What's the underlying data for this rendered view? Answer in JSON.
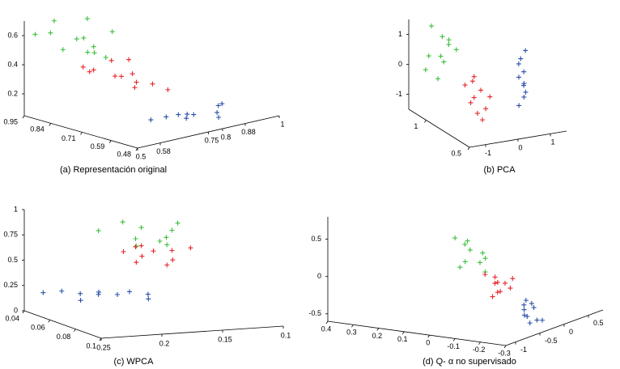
{
  "chart_data": [
    {
      "type": "scatter3d",
      "title": "(a) Representación original",
      "xlim": [
        0.5,
        1
      ],
      "ylim": [
        0.48,
        0.95
      ],
      "zlim": [
        0.05,
        0.7
      ],
      "xticks": [
        0.5,
        0.58,
        0.75,
        0.8,
        0.88,
        1
      ],
      "yticks": [
        0.95,
        0.84,
        0.71,
        0.59,
        0.48
      ],
      "zticks": [
        0.2,
        0.4,
        0.6
      ],
      "series": [
        {
          "color": "#2a4fa8",
          "x": [
            0.72,
            0.76,
            0.8,
            0.84,
            0.87,
            0.78,
            0.82,
            0.74,
            0.9,
            0.7
          ],
          "y": [
            0.62,
            0.58,
            0.6,
            0.55,
            0.58,
            0.64,
            0.52,
            0.56,
            0.6,
            0.66
          ],
          "z": [
            0.1,
            0.12,
            0.09,
            0.11,
            0.13,
            0.08,
            0.1,
            0.11,
            0.12,
            0.07
          ]
        },
        {
          "color": "#3cbf3c",
          "x": [
            0.55,
            0.6,
            0.58,
            0.65,
            0.7,
            0.62,
            0.56,
            0.68,
            0.63,
            0.6,
            0.66,
            0.53
          ],
          "y": [
            0.9,
            0.85,
            0.92,
            0.88,
            0.82,
            0.8,
            0.86,
            0.9,
            0.84,
            0.78,
            0.8,
            0.94
          ],
          "z": [
            0.62,
            0.58,
            0.68,
            0.55,
            0.6,
            0.5,
            0.52,
            0.66,
            0.48,
            0.56,
            0.45,
            0.6
          ]
        },
        {
          "color": "#e8262a",
          "x": [
            0.6,
            0.65,
            0.7,
            0.68,
            0.74,
            0.63,
            0.72,
            0.66,
            0.69,
            0.62,
            0.76,
            0.58
          ],
          "y": [
            0.78,
            0.75,
            0.72,
            0.8,
            0.7,
            0.7,
            0.76,
            0.68,
            0.74,
            0.82,
            0.66,
            0.8
          ],
          "z": [
            0.4,
            0.35,
            0.3,
            0.42,
            0.28,
            0.38,
            0.33,
            0.3,
            0.45,
            0.36,
            0.25,
            0.42
          ]
        }
      ]
    },
    {
      "type": "scatter3d",
      "title": "(b) PCA",
      "xlim": [
        -1.5,
        1.5
      ],
      "ylim": [
        0.5,
        1.2
      ],
      "zlim": [
        -1.5,
        1.5
      ],
      "xticks": [
        -1,
        0,
        1
      ],
      "yticks": [
        0.5,
        1
      ],
      "zticks": [
        -1,
        0,
        1
      ],
      "series": [
        {
          "color": "#2a4fa8",
          "x": [
            1.1,
            1.2,
            1.3,
            1.15,
            1.25,
            1.2,
            1.1,
            1.3,
            1.2,
            1.15
          ],
          "y": [
            0.9,
            0.88,
            0.92,
            0.86,
            0.9,
            0.94,
            0.88,
            0.9,
            0.86,
            0.92
          ],
          "z": [
            -1.3,
            -1,
            -0.7,
            -0.5,
            -0.2,
            0,
            0.3,
            0.5,
            -0.8,
            -0.4
          ]
        },
        {
          "color": "#3cbf3c",
          "x": [
            -1.2,
            -1,
            -0.8,
            -1.1,
            -0.9,
            -1.3,
            -0.7,
            -1,
            -0.85,
            -1.15
          ],
          "y": [
            1.05,
            1,
            1,
            0.98,
            1.02,
            1.08,
            0.95,
            1.05,
            0.98,
            1.1
          ],
          "z": [
            1.5,
            1.2,
            0.9,
            0.6,
            0.3,
            0,
            0.8,
            -0.3,
            1.1,
            0.4
          ]
        },
        {
          "color": "#e8262a",
          "x": [
            -0.6,
            -0.4,
            -0.5,
            -0.3,
            -0.7,
            -0.45,
            -0.2,
            -0.55,
            -0.35,
            -0.5
          ],
          "y": [
            0.8,
            0.78,
            0.82,
            0.76,
            0.85,
            0.8,
            0.75,
            0.84,
            0.78,
            0.82
          ],
          "z": [
            0,
            -0.3,
            -0.6,
            -0.9,
            -0.2,
            -1.1,
            -0.5,
            -0.8,
            -1.3,
            0.1
          ]
        }
      ]
    },
    {
      "type": "scatter3d",
      "title": "(c) WPCA",
      "xlim": [
        0.25,
        0.1
      ],
      "ylim": [
        0.04,
        0.1
      ],
      "zlim": [
        0,
        1
      ],
      "xticks": [
        0.25,
        0.2,
        0.15,
        0.1
      ],
      "yticks": [
        0.04,
        0.06,
        0.08,
        0.1
      ],
      "zticks": [
        0,
        0.25,
        0.5,
        0.75,
        1
      ],
      "series": [
        {
          "color": "#2a4fa8",
          "x": [
            0.245,
            0.235,
            0.225,
            0.215,
            0.205,
            0.195,
            0.185,
            0.23,
            0.21,
            0.19
          ],
          "y": [
            0.05,
            0.055,
            0.06,
            0.065,
            0.07,
            0.07,
            0.075,
            0.065,
            0.06,
            0.08
          ],
          "z": [
            0.22,
            0.25,
            0.24,
            0.27,
            0.26,
            0.28,
            0.27,
            0.2,
            0.22,
            0.25
          ]
        },
        {
          "color": "#3cbf3c",
          "x": [
            0.21,
            0.19,
            0.18,
            0.17,
            0.2,
            0.16,
            0.15,
            0.18,
            0.19,
            0.17
          ],
          "y": [
            0.06,
            0.07,
            0.065,
            0.075,
            0.08,
            0.07,
            0.065,
            0.085,
            0.06,
            0.07
          ],
          "z": [
            0.85,
            0.8,
            0.88,
            0.82,
            0.78,
            0.86,
            0.9,
            0.8,
            0.92,
            0.76
          ]
        },
        {
          "color": "#e8262a",
          "x": [
            0.2,
            0.19,
            0.18,
            0.17,
            0.16,
            0.18,
            0.15,
            0.19,
            0.17,
            0.2
          ],
          "y": [
            0.07,
            0.075,
            0.065,
            0.08,
            0.07,
            0.085,
            0.075,
            0.07,
            0.065,
            0.08
          ],
          "z": [
            0.68,
            0.65,
            0.7,
            0.62,
            0.66,
            0.6,
            0.7,
            0.72,
            0.64,
            0.62
          ]
        }
      ]
    },
    {
      "type": "scatter3d",
      "title": "(d) Q- α no supervisado",
      "xlim": [
        -1.2,
        0.8
      ],
      "ylim": [
        0.4,
        -0.3
      ],
      "zlim": [
        -0.6,
        0.8
      ],
      "xticks": [
        -1,
        -0.5,
        0,
        0.5
      ],
      "yticks": [
        0.4,
        0.3,
        0.2,
        0.1,
        0,
        -0.1,
        -0.2,
        -0.3
      ],
      "zticks": [
        0.5,
        0,
        -0.5
      ],
      "series": [
        {
          "color": "#2a4fa8",
          "x": [
            -0.6,
            -0.5,
            -0.4,
            -0.3,
            -0.2,
            -0.1,
            0,
            -0.35,
            -0.25,
            -0.45
          ],
          "y": [
            -0.28,
            -0.25,
            -0.22,
            -0.2,
            -0.18,
            -0.2,
            -0.15,
            -0.26,
            -0.22,
            -0.3
          ],
          "z": [
            -0.45,
            -0.4,
            -0.42,
            -0.38,
            -0.35,
            -0.4,
            -0.35,
            -0.48,
            -0.3,
            -0.44
          ]
        },
        {
          "color": "#3cbf3c",
          "x": [
            -1.2,
            -1.1,
            -1.15,
            -1.05,
            -1.2,
            -1.1,
            -1,
            -1.15,
            -1.05,
            -1.1
          ],
          "y": [
            -0.1,
            -0.12,
            -0.15,
            -0.18,
            -0.14,
            -0.2,
            -0.16,
            -0.11,
            -0.19,
            -0.13
          ],
          "z": [
            0.75,
            0.65,
            0.6,
            0.55,
            0.45,
            0.5,
            0.4,
            0.35,
            0.3,
            0.7
          ]
        },
        {
          "color": "#e8262a",
          "x": [
            -1,
            -0.9,
            -0.95,
            -0.85,
            -1,
            -0.9,
            -0.8,
            -0.95,
            -0.85,
            -0.9
          ],
          "y": [
            -0.18,
            -0.2,
            -0.22,
            -0.19,
            -0.24,
            -0.21,
            -0.25,
            -0.2,
            -0.23,
            -0.26
          ],
          "z": [
            0.25,
            0.2,
            0.15,
            0.1,
            0.05,
            0,
            0.18,
            -0.05,
            0.12,
            0.08
          ]
        }
      ]
    }
  ]
}
